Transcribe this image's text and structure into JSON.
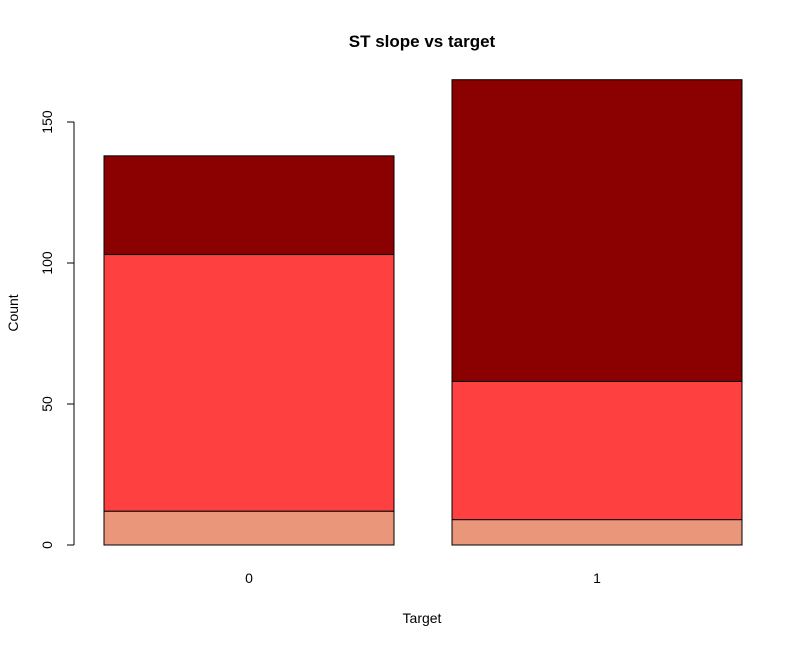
{
  "chart_data": {
    "type": "bar",
    "stacked": true,
    "title": "ST slope vs target",
    "xlabel": "Target",
    "ylabel": "Count",
    "categories": [
      "0",
      "1"
    ],
    "series": [
      {
        "values": [
          12,
          9
        ],
        "color": "#E9967A"
      },
      {
        "values": [
          91,
          49
        ],
        "color": "#FF4040"
      },
      {
        "values": [
          35,
          107
        ],
        "color": "#8B0000"
      }
    ],
    "yticks": [
      0,
      50,
      100,
      150
    ],
    "ylim": [
      0,
      165
    ],
    "grid": false,
    "legend": "none"
  }
}
